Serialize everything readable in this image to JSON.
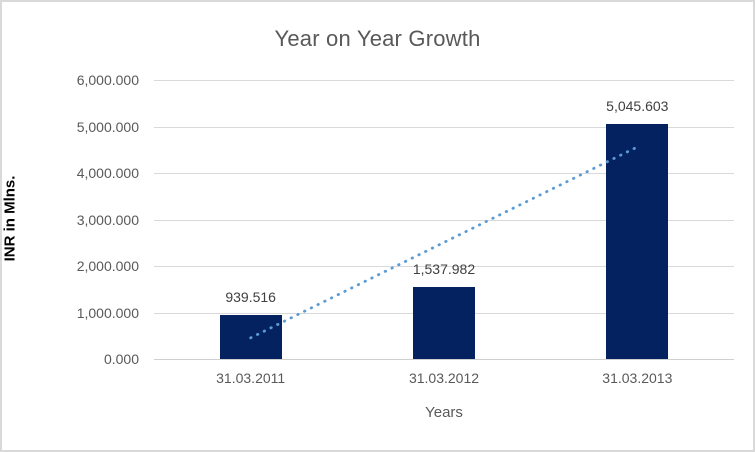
{
  "chart_data": {
    "type": "bar",
    "title": "Year on Year Growth",
    "xlabel": "Years",
    "ylabel": "INR in Mlns.",
    "categories": [
      "31.03.2011",
      "31.03.2012",
      "31.03.2013"
    ],
    "values": [
      939.516,
      1537.982,
      5045.603
    ],
    "value_labels": [
      "939.516",
      "1,537.982",
      "5,045.603"
    ],
    "ylim": [
      0,
      6000
    ],
    "y_ticks": [
      {
        "value": 0,
        "label": "0.000"
      },
      {
        "value": 1000,
        "label": "1,000.000"
      },
      {
        "value": 2000,
        "label": "2,000.000"
      },
      {
        "value": 3000,
        "label": "3,000.000"
      },
      {
        "value": 4000,
        "label": "4,000.000"
      },
      {
        "value": 5000,
        "label": "5,000.000"
      },
      {
        "value": 6000,
        "label": "6,000.000"
      }
    ],
    "grid": true,
    "legend": "none",
    "trendline": {
      "type": "linear",
      "style": "dotted",
      "start_value": 455,
      "end_value": 4561
    },
    "colors": {
      "bar": "#04225F",
      "trendline": "#5B9BD5",
      "gridline": "#D9D9D9",
      "title_text": "#595959",
      "tick_text": "#595959",
      "data_label_text": "#404040",
      "border": "#D9D9D9"
    }
  }
}
